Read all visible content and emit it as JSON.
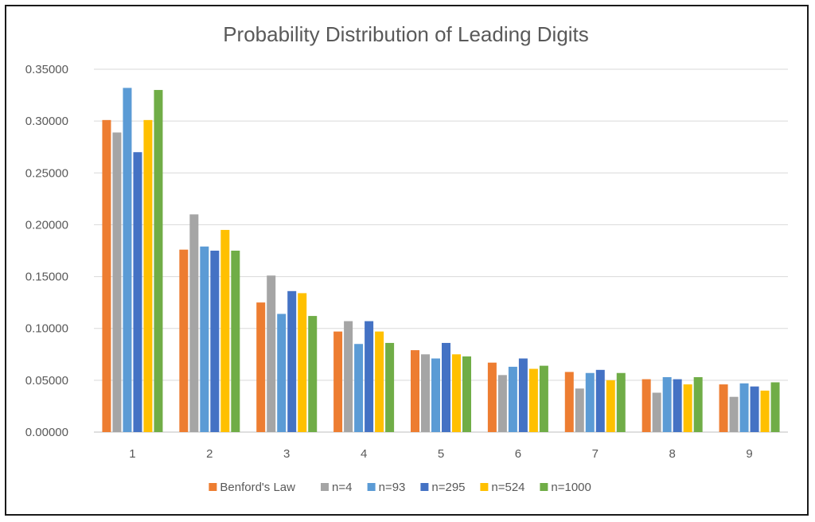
{
  "chart_data": {
    "type": "bar",
    "title": "Probability Distribution of Leading Digits",
    "xlabel": "",
    "ylabel": "",
    "ylim": [
      0,
      0.35
    ],
    "yticks": [
      "0.00000",
      "0.05000",
      "0.10000",
      "0.15000",
      "0.20000",
      "0.25000",
      "0.30000",
      "0.35000"
    ],
    "categories": [
      "1",
      "2",
      "3",
      "4",
      "5",
      "6",
      "7",
      "8",
      "9"
    ],
    "grid": true,
    "legend_position": "bottom",
    "series": [
      {
        "name": "Benford's Law",
        "color": "#ed7d31",
        "values": [
          0.301,
          0.176,
          0.125,
          0.097,
          0.079,
          0.067,
          0.058,
          0.051,
          0.046
        ]
      },
      {
        "name": "n=4",
        "color": "#a5a5a5",
        "values": [
          0.289,
          0.21,
          0.151,
          0.107,
          0.075,
          0.055,
          0.042,
          0.038,
          0.034
        ]
      },
      {
        "name": "n=93",
        "color": "#5b9bd5",
        "values": [
          0.332,
          0.179,
          0.114,
          0.085,
          0.071,
          0.063,
          0.057,
          0.053,
          0.047
        ]
      },
      {
        "name": "n=295",
        "color": "#4472c4",
        "values": [
          0.27,
          0.175,
          0.136,
          0.107,
          0.086,
          0.071,
          0.06,
          0.051,
          0.044
        ]
      },
      {
        "name": "n=524",
        "color": "#ffc000",
        "values": [
          0.301,
          0.195,
          0.134,
          0.097,
          0.075,
          0.061,
          0.05,
          0.046,
          0.04
        ]
      },
      {
        "name": "n=1000",
        "color": "#70ad47",
        "values": [
          0.33,
          0.175,
          0.112,
          0.086,
          0.073,
          0.064,
          0.057,
          0.053,
          0.048
        ]
      }
    ]
  }
}
